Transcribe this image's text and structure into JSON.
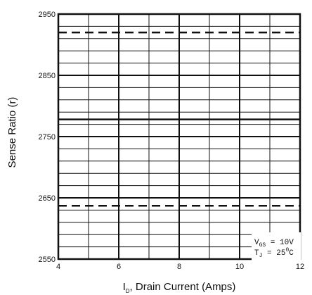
{
  "chart_data": {
    "type": "line",
    "title": "",
    "xlabel": {
      "main": "I",
      "sub": "D",
      "rest": ", Drain Current (Amps)"
    },
    "ylabel": "Sense Ratio (r)",
    "xlim": [
      4,
      12
    ],
    "ylim": [
      2550,
      2950
    ],
    "x_ticks": [
      "4",
      "6",
      "8",
      "10",
      "12"
    ],
    "y_ticks": [
      "2550",
      "2650",
      "2750",
      "2850",
      "2950"
    ],
    "grid": true,
    "series": [
      {
        "style": "dashed",
        "x": [
          4,
          12
        ],
        "values": [
          2920,
          2920
        ]
      },
      {
        "style": "solid",
        "x": [
          4,
          12
        ],
        "values": [
          2778,
          2778
        ]
      },
      {
        "style": "dashed",
        "x": [
          4,
          12
        ],
        "values": [
          2637,
          2637
        ]
      }
    ],
    "annotation": {
      "line1": {
        "symbol": "V",
        "sub": "GS",
        "rest": " = 10V"
      },
      "line2": {
        "symbol": "T",
        "sub": "J",
        "rest": " = 25",
        "sup": "0",
        "unit": "C"
      },
      "position": "bottom-right"
    }
  }
}
